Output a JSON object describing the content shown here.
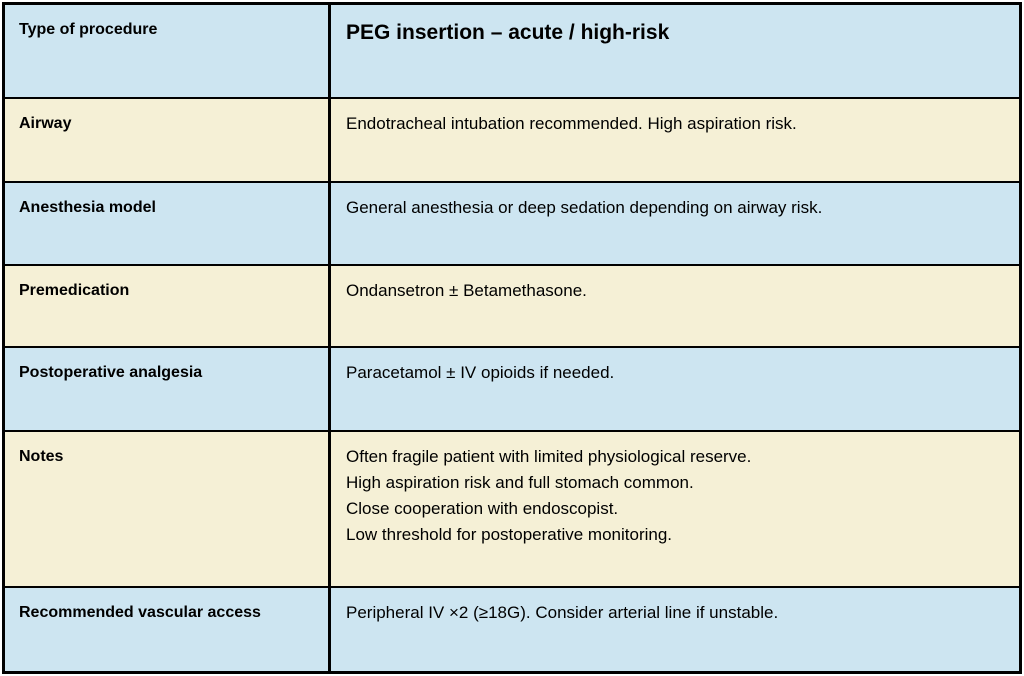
{
  "table": {
    "header": {
      "label": "Type of procedure",
      "title": "PEG insertion – acute / high-risk"
    },
    "rows": [
      {
        "label": "Airway",
        "lines": [
          "Endotracheal intubation recommended. High aspiration risk."
        ]
      },
      {
        "label": "Anesthesia model",
        "lines": [
          "General anesthesia or deep sedation depending on airway risk."
        ]
      },
      {
        "label": "Premedication",
        "lines": [
          "Ondansetron ± Betamethasone."
        ]
      },
      {
        "label": "Postoperative analgesia",
        "lines": [
          "Paracetamol ± IV opioids if needed."
        ]
      },
      {
        "label": "Notes",
        "lines": [
          "Often fragile patient with limited physiological reserve.",
          "High aspiration risk and full stomach common.",
          "Close cooperation with endoscopist.",
          "Low threshold for postoperative monitoring."
        ]
      },
      {
        "label": "Recommended vascular access",
        "lines": [
          "Peripheral IV ×2 (≥18G). Consider arterial line if unstable."
        ]
      }
    ],
    "colors": {
      "row_blue": "#cde5f1",
      "row_cream": "#f5f0d6",
      "border": "#000000",
      "text": "#000000",
      "page_background": "#ffffff"
    }
  }
}
